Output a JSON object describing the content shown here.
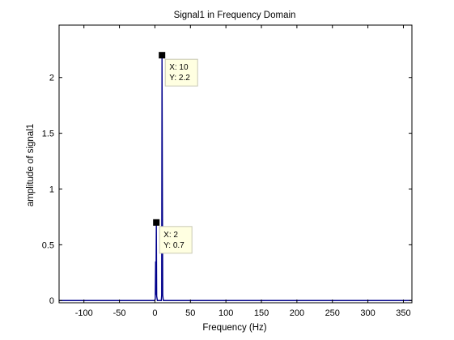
{
  "chart_data": {
    "type": "line",
    "title": "Signal1 in Frequency Domain",
    "xlabel": "Frequency (Hz)",
    "ylabel": "amplitude of signal1",
    "xlim": [
      -135,
      362
    ],
    "ylim": [
      -0.02,
      2.47
    ],
    "xticks": [
      -100,
      -50,
      0,
      50,
      100,
      150,
      200,
      250,
      300,
      350
    ],
    "yticks": [
      0,
      0.5,
      1,
      1.5,
      2
    ],
    "xtick_labels": [
      "-100",
      "-50",
      "0",
      "50",
      "100",
      "150",
      "200",
      "250",
      "300",
      "350"
    ],
    "ytick_labels": [
      "0",
      "0.5",
      "1",
      "1.5",
      "2"
    ],
    "grid": false,
    "series": [
      {
        "color": "#00008b",
        "x": [
          -135,
          0,
          0.5,
          1,
          1.5,
          2,
          2.5,
          3,
          3.5,
          4,
          9,
          9.5,
          10,
          10.5,
          11,
          11.5,
          12,
          362
        ],
        "y": [
          0,
          0,
          0.02,
          0.35,
          0.05,
          0.7,
          0.04,
          0.02,
          0,
          0,
          0,
          0.05,
          2.2,
          1.1,
          0.05,
          0.02,
          0,
          0
        ]
      }
    ],
    "annotations": [
      {
        "x": 10,
        "y": 2.2,
        "text_x": "X: 10",
        "text_y": "Y: 2.2"
      },
      {
        "x": 2,
        "y": 0.7,
        "text_x": "X: 2",
        "text_y": "Y: 0.7"
      }
    ]
  }
}
